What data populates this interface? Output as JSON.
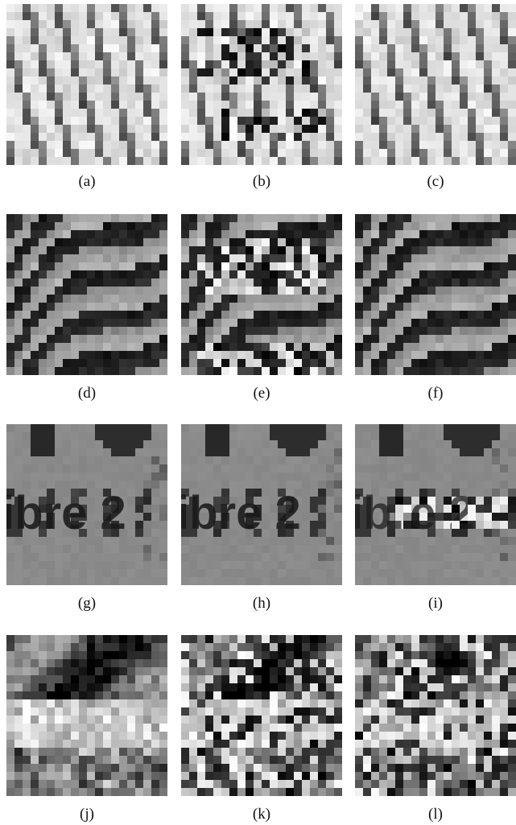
{
  "figure": {
    "panels": [
      {
        "label": "(a)",
        "texture": "diagonal-stripes"
      },
      {
        "label": "(b)",
        "texture": "diagonal-stripes-corrupted"
      },
      {
        "label": "(c)",
        "texture": "diagonal-stripes"
      },
      {
        "label": "(d)",
        "texture": "wavy-stripes"
      },
      {
        "label": "(e)",
        "texture": "wavy-stripes-corrupted"
      },
      {
        "label": "(f)",
        "texture": "wavy-stripes"
      },
      {
        "label": "(g)",
        "texture": "text-patch",
        "text": "ibre 2"
      },
      {
        "label": "(h)",
        "texture": "text-patch",
        "text": "ibre 2"
      },
      {
        "label": "(i)",
        "texture": "text-patch-corrupted",
        "text": "ibre 2"
      },
      {
        "label": "(j)",
        "texture": "natural-texture"
      },
      {
        "label": "(k)",
        "texture": "natural-texture-corrupted"
      },
      {
        "label": "(l)",
        "texture": "natural-texture-corrupted"
      }
    ]
  }
}
